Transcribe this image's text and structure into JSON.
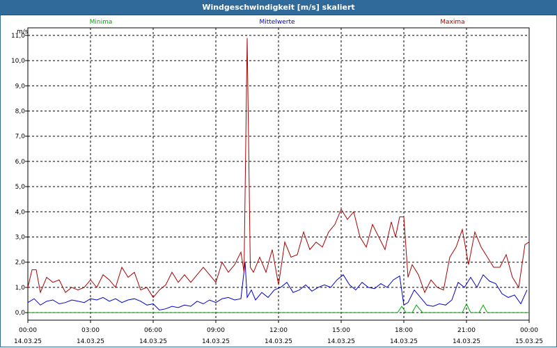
{
  "window": {
    "title": "Windgeschwindigkeit [m/s] skaliert"
  },
  "chart_data": {
    "type": "line",
    "title": "Windgeschwindigkeit [m/s] skaliert",
    "ylabel": "m/s",
    "xlabel": "",
    "ylim": [
      -0.3,
      11.3
    ],
    "xlim": [
      0,
      24
    ],
    "grid": true,
    "legend_placement": "top",
    "yticks": [
      {
        "v": 0,
        "label": "0,0"
      },
      {
        "v": 1,
        "label": "1,0"
      },
      {
        "v": 2,
        "label": "2,0"
      },
      {
        "v": 3,
        "label": "3,0"
      },
      {
        "v": 4,
        "label": "4,0"
      },
      {
        "v": 5,
        "label": "5,0"
      },
      {
        "v": 6,
        "label": "6,0"
      },
      {
        "v": 7,
        "label": "7,0"
      },
      {
        "v": 8,
        "label": "8,0"
      },
      {
        "v": 9,
        "label": "9,0"
      },
      {
        "v": 10,
        "label": "10,0"
      },
      {
        "v": 11,
        "label": "11,0"
      }
    ],
    "xticks": [
      {
        "h": 0,
        "time": "00:00",
        "date": "14.03.25"
      },
      {
        "h": 3,
        "time": "03:00",
        "date": "14.03.25"
      },
      {
        "h": 6,
        "time": "06:00",
        "date": "14.03.25"
      },
      {
        "h": 9,
        "time": "09:00",
        "date": "14.03.25"
      },
      {
        "h": 12,
        "time": "12:00",
        "date": "14.03.25"
      },
      {
        "h": 15,
        "time": "15:00",
        "date": "14.03.25"
      },
      {
        "h": 18,
        "time": "18:00",
        "date": "14.03.25"
      },
      {
        "h": 21,
        "time": "21:00",
        "date": "14.03.25"
      },
      {
        "h": 24,
        "time": "00:00",
        "date": "15.03.25"
      }
    ],
    "series": [
      {
        "name": "Minima",
        "color": "#00aa00",
        "x": [
          0,
          17.7,
          17.9,
          18.1,
          18.4,
          18.6,
          18.9,
          20.8,
          21.0,
          21.2,
          21.6,
          21.8,
          22.0,
          24
        ],
        "y": [
          0,
          0,
          0.25,
          0,
          0,
          0.3,
          0,
          0,
          0.35,
          0,
          0,
          0.3,
          0,
          0
        ]
      },
      {
        "name": "Mittelwerte",
        "color": "#0000cc",
        "x": [
          0,
          0.3,
          0.6,
          0.9,
          1.2,
          1.5,
          1.8,
          2.1,
          2.4,
          2.7,
          3.0,
          3.3,
          3.6,
          3.9,
          4.2,
          4.5,
          4.8,
          5.1,
          5.4,
          5.7,
          6.0,
          6.3,
          6.6,
          6.9,
          7.2,
          7.5,
          7.8,
          8.1,
          8.4,
          8.7,
          9.0,
          9.3,
          9.6,
          9.9,
          10.2,
          10.4,
          10.5,
          10.7,
          10.9,
          11.2,
          11.5,
          11.8,
          12.1,
          12.4,
          12.7,
          13.0,
          13.3,
          13.6,
          13.9,
          14.2,
          14.5,
          14.8,
          15.1,
          15.4,
          15.7,
          16.0,
          16.3,
          16.6,
          16.9,
          17.2,
          17.5,
          17.8,
          18.0,
          18.2,
          18.5,
          18.8,
          19.1,
          19.4,
          19.7,
          20.0,
          20.3,
          20.6,
          20.9,
          21.2,
          21.5,
          21.8,
          22.1,
          22.4,
          22.7,
          23.0,
          23.3,
          23.6,
          23.9
        ],
        "y": [
          0.4,
          0.55,
          0.3,
          0.45,
          0.5,
          0.35,
          0.4,
          0.5,
          0.45,
          0.4,
          0.55,
          0.5,
          0.6,
          0.45,
          0.55,
          0.4,
          0.5,
          0.55,
          0.45,
          0.3,
          0.35,
          0.1,
          0.15,
          0.25,
          0.2,
          0.3,
          0.25,
          0.45,
          0.35,
          0.5,
          0.4,
          0.55,
          0.6,
          0.5,
          0.55,
          2.0,
          0.6,
          0.9,
          0.5,
          0.8,
          0.6,
          0.9,
          1.0,
          1.2,
          0.8,
          0.9,
          1.1,
          0.85,
          1.0,
          1.1,
          1.0,
          1.3,
          1.5,
          1.1,
          0.9,
          1.2,
          1.0,
          0.95,
          1.15,
          1.0,
          1.3,
          1.45,
          0.3,
          0.4,
          0.9,
          0.6,
          0.3,
          0.25,
          0.35,
          0.3,
          0.5,
          1.2,
          1.0,
          1.4,
          1.0,
          1.5,
          1.25,
          1.15,
          0.75,
          0.6,
          0.7,
          0.35,
          0.9
        ]
      },
      {
        "name": "Maxima",
        "color": "#aa0000",
        "x": [
          0,
          0.2,
          0.4,
          0.6,
          0.9,
          1.2,
          1.5,
          1.8,
          2.1,
          2.4,
          2.7,
          3.0,
          3.3,
          3.6,
          3.9,
          4.2,
          4.5,
          4.8,
          5.1,
          5.4,
          5.7,
          6.0,
          6.3,
          6.6,
          6.9,
          7.2,
          7.5,
          7.8,
          8.1,
          8.4,
          8.7,
          9.0,
          9.3,
          9.6,
          9.9,
          10.2,
          10.35,
          10.5,
          10.65,
          10.8,
          11.1,
          11.4,
          11.7,
          12.0,
          12.3,
          12.6,
          12.9,
          13.2,
          13.5,
          13.8,
          14.1,
          14.4,
          14.7,
          15.0,
          15.3,
          15.6,
          15.9,
          16.2,
          16.5,
          16.8,
          17.1,
          17.4,
          17.6,
          17.8,
          18.0,
          18.2,
          18.4,
          18.7,
          19.0,
          19.3,
          19.6,
          19.9,
          20.2,
          20.5,
          20.8,
          21.1,
          21.4,
          21.7,
          22.0,
          22.3,
          22.6,
          22.9,
          23.2,
          23.5,
          23.8,
          24.0
        ],
        "y": [
          1.0,
          1.7,
          1.7,
          0.8,
          1.4,
          1.2,
          1.3,
          0.8,
          1.0,
          0.9,
          1.0,
          1.3,
          1.0,
          1.5,
          1.3,
          1.0,
          1.8,
          1.4,
          1.6,
          0.9,
          1.0,
          0.6,
          0.9,
          1.1,
          1.6,
          1.2,
          1.5,
          1.2,
          1.5,
          1.8,
          1.5,
          1.2,
          2.0,
          1.6,
          1.9,
          2.4,
          1.6,
          10.9,
          1.8,
          1.6,
          2.2,
          1.6,
          2.5,
          1.1,
          2.8,
          2.2,
          2.3,
          3.2,
          2.5,
          2.8,
          2.6,
          3.2,
          3.5,
          4.1,
          3.7,
          4.0,
          3.0,
          2.6,
          3.5,
          3.0,
          2.5,
          3.6,
          3.0,
          3.8,
          3.8,
          1.4,
          1.9,
          1.5,
          0.8,
          1.3,
          1.0,
          0.9,
          2.2,
          2.6,
          3.3,
          1.9,
          3.2,
          2.6,
          2.2,
          1.8,
          1.8,
          2.3,
          1.4,
          1.0,
          2.7,
          2.8
        ]
      }
    ]
  }
}
